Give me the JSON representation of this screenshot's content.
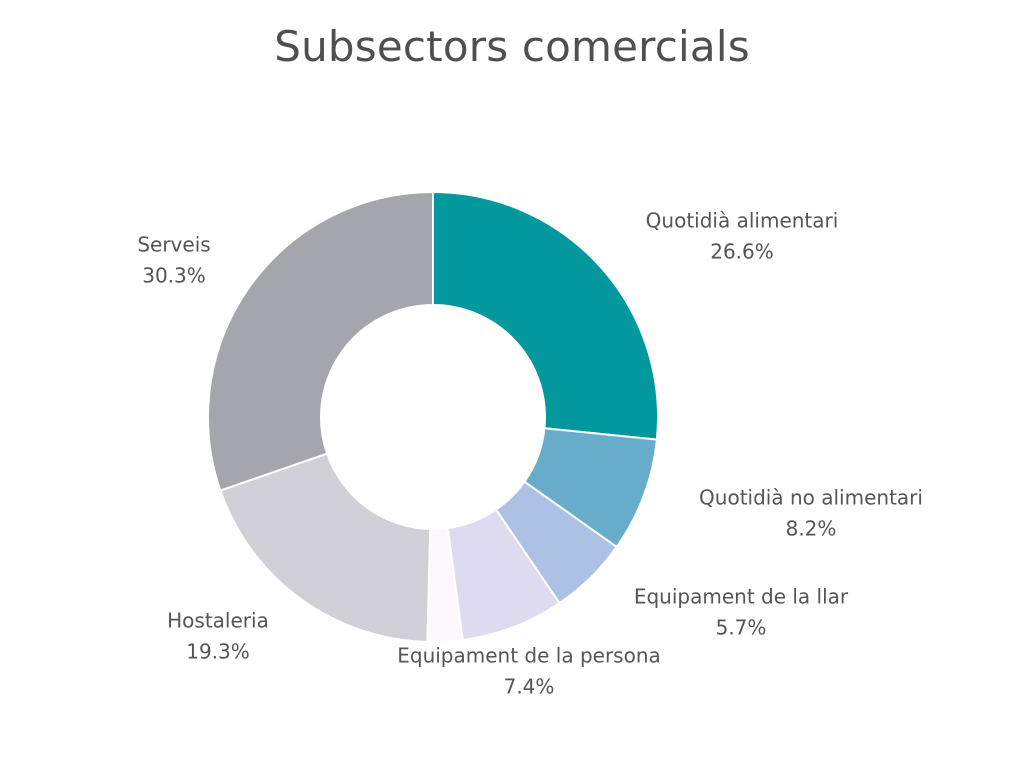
{
  "chart_data": {
    "type": "pie",
    "variant": "donut",
    "title": "Subsectors comercials",
    "slices": [
      {
        "label": "Quotidià alimentari",
        "value": 26.6,
        "value_label": "26.6%",
        "color": "#03989e"
      },
      {
        "label": "Quotidià no alimentari",
        "value": 8.2,
        "value_label": "8.2%",
        "color": "#68accb"
      },
      {
        "label": "Equipament de la llar",
        "value": 5.7,
        "value_label": "5.7%",
        "color": "#adc1e5"
      },
      {
        "label": "Equipament de la persona",
        "value": 7.4,
        "value_label": "7.4%",
        "color": "#dedbf1"
      },
      {
        "label": "",
        "value": 2.5,
        "value_label": "",
        "color": "#fcf8fe"
      },
      {
        "label": "Hostaleria",
        "value": 19.3,
        "value_label": "19.3%",
        "color": "#d1cfd7"
      },
      {
        "label": "Serveis",
        "value": 30.3,
        "value_label": "30.3%",
        "color": "#a5a5ad"
      }
    ],
    "legend": "none",
    "start_angle": "12 o'clock",
    "direction": "clockwise"
  }
}
